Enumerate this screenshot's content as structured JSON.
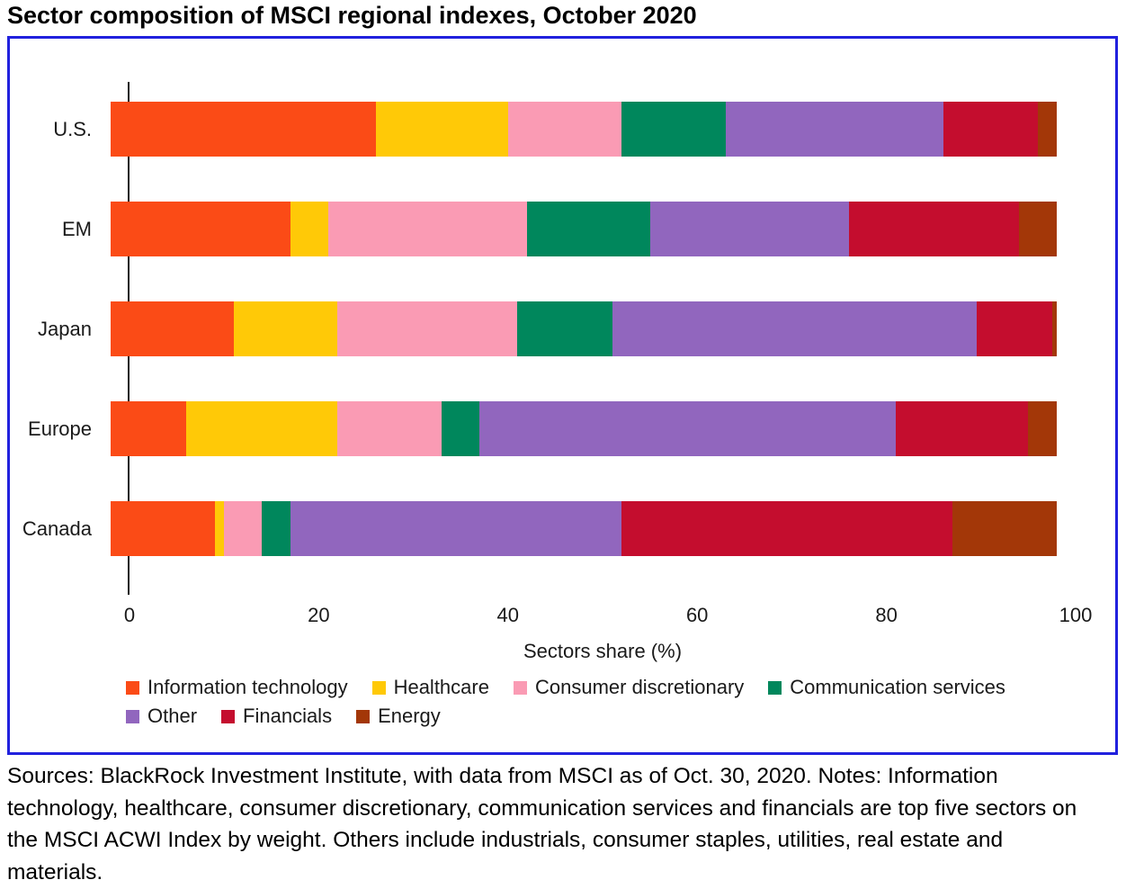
{
  "title": "Sector composition of MSCI regional indexes, October 2020",
  "colors": {
    "frame_border": "#2121DE",
    "axis": "#1a1a1a",
    "text": "#000000"
  },
  "chart_data": {
    "type": "bar",
    "orientation": "horizontal",
    "stacked": true,
    "title": "Sector composition of MSCI regional indexes, October 2020",
    "categories": [
      "U.S.",
      "EM",
      "Japan",
      "Europe",
      "Canada"
    ],
    "series": [
      {
        "name": "Information technology",
        "color": "#FB4B16",
        "values": [
          28,
          19,
          13,
          8,
          11
        ]
      },
      {
        "name": "Healthcare",
        "color": "#FFC907",
        "values": [
          14,
          4,
          11,
          16,
          1
        ]
      },
      {
        "name": "Consumer discretionary",
        "color": "#FA9BB4",
        "values": [
          12,
          21,
          19,
          11,
          4
        ]
      },
      {
        "name": "Communication services",
        "color": "#00875C",
        "values": [
          11,
          13,
          10,
          4,
          3
        ]
      },
      {
        "name": "Other",
        "color": "#9166BE",
        "values": [
          23,
          21,
          38.5,
          44,
          35
        ]
      },
      {
        "name": "Financials",
        "color": "#C40D2E",
        "values": [
          10,
          18,
          8,
          14,
          35
        ]
      },
      {
        "name": "Energy",
        "color": "#A33708",
        "values": [
          2,
          4,
          0.5,
          3,
          11
        ]
      }
    ],
    "xlabel": "Sectors share (%)",
    "xticks": [
      0,
      20,
      40,
      60,
      80,
      100
    ],
    "xlim": [
      0,
      100
    ],
    "grid": false,
    "legend_position": "bottom",
    "legend_rows": [
      4,
      3
    ]
  },
  "footer": {
    "text": "Sources: BlackRock Investment Institute, with data from MSCI as of Oct. 30, 2020. Notes: Information technology, healthcare, consumer discretionary, communication services and financials are top five sectors on the MSCI ACWI Index by weight. Others include industrials, consumer staples, utilities, real estate and materials."
  }
}
